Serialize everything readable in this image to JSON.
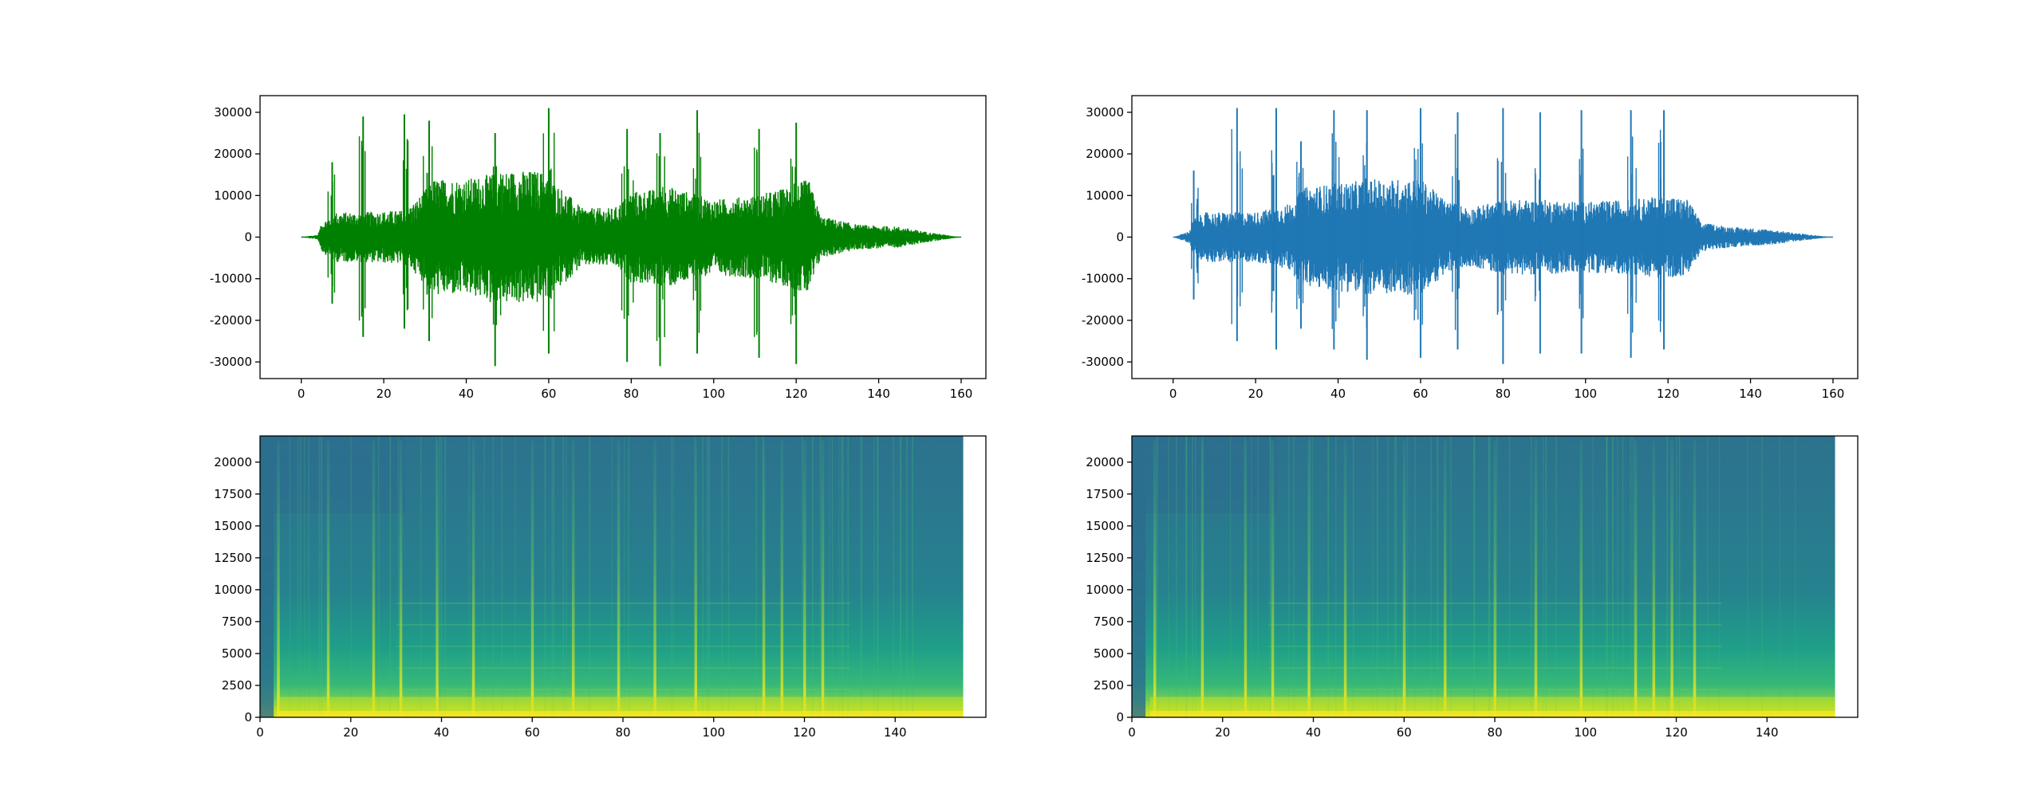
{
  "chart_data": [
    {
      "type": "line",
      "panel": "top-left waveform",
      "title": "",
      "xlabel": "",
      "ylabel": "",
      "xlim": [
        -10,
        166
      ],
      "ylim": [
        -34000,
        34000
      ],
      "xticks": [
        0,
        20,
        40,
        60,
        80,
        100,
        120,
        140,
        160
      ],
      "yticks": [
        -30000,
        -20000,
        -10000,
        0,
        10000,
        20000,
        30000
      ],
      "grid": false,
      "color": "#008000",
      "x_range": [
        0,
        160
      ],
      "envelope": [
        {
          "x": 0,
          "amp": 0
        },
        {
          "x": 4,
          "amp": 600
        },
        {
          "x": 5,
          "amp": 3500
        },
        {
          "x": 8,
          "amp": 6000
        },
        {
          "x": 15,
          "amp": 6000
        },
        {
          "x": 25,
          "amp": 6500
        },
        {
          "x": 28,
          "amp": 9000
        },
        {
          "x": 32,
          "amp": 14000
        },
        {
          "x": 40,
          "amp": 14000
        },
        {
          "x": 50,
          "amp": 16000
        },
        {
          "x": 58,
          "amp": 16000
        },
        {
          "x": 64,
          "amp": 11000
        },
        {
          "x": 68,
          "amp": 7000
        },
        {
          "x": 76,
          "amp": 7000
        },
        {
          "x": 80,
          "amp": 11000
        },
        {
          "x": 90,
          "amp": 12000
        },
        {
          "x": 100,
          "amp": 9000
        },
        {
          "x": 110,
          "amp": 10000
        },
        {
          "x": 118,
          "amp": 12000
        },
        {
          "x": 123,
          "amp": 14000
        },
        {
          "x": 126,
          "amp": 5000
        },
        {
          "x": 135,
          "amp": 3000
        },
        {
          "x": 145,
          "amp": 2500
        },
        {
          "x": 152,
          "amp": 1200
        },
        {
          "x": 158,
          "amp": 300
        },
        {
          "x": 160,
          "amp": 0
        }
      ],
      "peaks": [
        {
          "x": 7.5,
          "max": 18000,
          "min": -16000
        },
        {
          "x": 15,
          "max": 29000,
          "min": -24000
        },
        {
          "x": 25,
          "max": 29500,
          "min": -22000
        },
        {
          "x": 31,
          "max": 28000,
          "min": -25000
        },
        {
          "x": 47,
          "max": 25000,
          "min": -31000
        },
        {
          "x": 60,
          "max": 31000,
          "min": -28000
        },
        {
          "x": 79,
          "max": 26000,
          "min": -30000
        },
        {
          "x": 87,
          "max": 25000,
          "min": -31000
        },
        {
          "x": 96,
          "max": 30500,
          "min": -28000
        },
        {
          "x": 111,
          "max": 26000,
          "min": -29000
        },
        {
          "x": 120,
          "max": 27500,
          "min": -30500
        }
      ]
    },
    {
      "type": "line",
      "panel": "top-right waveform",
      "title": "",
      "xlabel": "",
      "ylabel": "",
      "xlim": [
        -10,
        166
      ],
      "ylim": [
        -34000,
        34000
      ],
      "xticks": [
        0,
        20,
        40,
        60,
        80,
        100,
        120,
        140,
        160
      ],
      "yticks": [
        -30000,
        -20000,
        -10000,
        0,
        10000,
        20000,
        30000
      ],
      "grid": false,
      "color": "#1f77b4",
      "x_range": [
        0,
        160
      ],
      "envelope": [
        {
          "x": 0,
          "amp": 0
        },
        {
          "x": 4,
          "amp": 1500
        },
        {
          "x": 5,
          "amp": 4500
        },
        {
          "x": 8,
          "amp": 6000
        },
        {
          "x": 20,
          "amp": 6000
        },
        {
          "x": 28,
          "amp": 8000
        },
        {
          "x": 32,
          "amp": 12000
        },
        {
          "x": 40,
          "amp": 13000
        },
        {
          "x": 50,
          "amp": 14000
        },
        {
          "x": 60,
          "amp": 14000
        },
        {
          "x": 66,
          "amp": 9000
        },
        {
          "x": 72,
          "amp": 7000
        },
        {
          "x": 80,
          "amp": 9000
        },
        {
          "x": 90,
          "amp": 9000
        },
        {
          "x": 100,
          "amp": 8500
        },
        {
          "x": 110,
          "amp": 9000
        },
        {
          "x": 120,
          "amp": 10000
        },
        {
          "x": 125,
          "amp": 9000
        },
        {
          "x": 128,
          "amp": 3500
        },
        {
          "x": 135,
          "amp": 2500
        },
        {
          "x": 145,
          "amp": 1800
        },
        {
          "x": 152,
          "amp": 900
        },
        {
          "x": 158,
          "amp": 200
        },
        {
          "x": 160,
          "amp": 0
        }
      ],
      "peaks": [
        {
          "x": 5,
          "max": 16000,
          "min": -15000
        },
        {
          "x": 15.5,
          "max": 31000,
          "min": -25000
        },
        {
          "x": 25,
          "max": 31000,
          "min": -27000
        },
        {
          "x": 31,
          "max": 23000,
          "min": -22000
        },
        {
          "x": 39,
          "max": 30500,
          "min": -27000
        },
        {
          "x": 47,
          "max": 30500,
          "min": -29500
        },
        {
          "x": 60,
          "max": 31000,
          "min": -29000
        },
        {
          "x": 69,
          "max": 30000,
          "min": -27000
        },
        {
          "x": 80,
          "max": 31000,
          "min": -30500
        },
        {
          "x": 89,
          "max": 30000,
          "min": -28000
        },
        {
          "x": 99,
          "max": 30500,
          "min": -28000
        },
        {
          "x": 111,
          "max": 30500,
          "min": -29000
        },
        {
          "x": 119,
          "max": 30500,
          "min": -27000
        }
      ]
    },
    {
      "type": "heatmap",
      "panel": "bottom-left spectrogram",
      "title": "",
      "xlabel": "",
      "ylabel": "",
      "xlim": [
        0,
        160
      ],
      "ylim": [
        0,
        22050
      ],
      "data_x_max": 155,
      "xticks": [
        0,
        20,
        40,
        60,
        80,
        100,
        120,
        140
      ],
      "yticks": [
        0,
        2500,
        5000,
        7500,
        10000,
        12500,
        15000,
        17500,
        20000
      ],
      "colormap": "viridis",
      "grid": false,
      "notes": {
        "lowpass_region": {
          "x_end": 32,
          "freq_cutoff": 16000
        }
      },
      "bright_columns": [
        4,
        15,
        25,
        31,
        39,
        47,
        60,
        69,
        79,
        87,
        96,
        111,
        115,
        120,
        124
      ]
    },
    {
      "type": "heatmap",
      "panel": "bottom-right spectrogram",
      "title": "",
      "xlabel": "",
      "ylabel": "",
      "xlim": [
        0,
        160
      ],
      "ylim": [
        0,
        22050
      ],
      "data_x_max": 155,
      "xticks": [
        0,
        20,
        40,
        60,
        80,
        100,
        120,
        140
      ],
      "yticks": [
        0,
        2500,
        5000,
        7500,
        10000,
        12500,
        15000,
        17500,
        20000
      ],
      "colormap": "viridis",
      "grid": false,
      "notes": {
        "lowpass_region": {
          "x_end": 32,
          "freq_cutoff": 16000
        }
      },
      "bright_columns": [
        5,
        15.5,
        25,
        31,
        39,
        47,
        60,
        69,
        80,
        89,
        99,
        111,
        115,
        119,
        124
      ]
    }
  ]
}
